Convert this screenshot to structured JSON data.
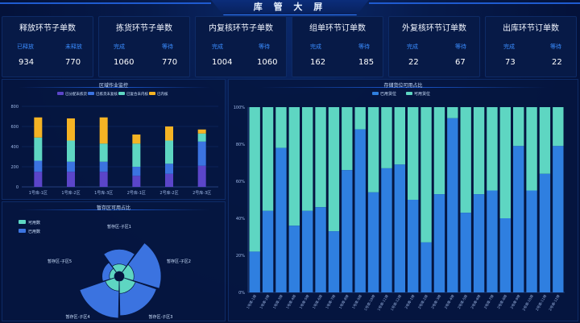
{
  "header": {
    "title": "库 管 大 屏"
  },
  "cards": [
    {
      "title": "释放环节子单数",
      "left_label": "已释放",
      "right_label": "未释放",
      "left_value": "934",
      "right_value": "770"
    },
    {
      "title": "拣货环节子单数",
      "left_label": "完成",
      "right_label": "等待",
      "left_value": "1060",
      "right_value": "770"
    },
    {
      "title": "内复核环节子单数",
      "left_label": "完成",
      "right_label": "等待",
      "left_value": "1004",
      "right_value": "1060"
    },
    {
      "title": "组单环节订单数",
      "left_label": "完成",
      "right_label": "等待",
      "left_value": "162",
      "right_value": "185"
    },
    {
      "title": "外复核环节订单数",
      "left_label": "完成",
      "right_label": "等待",
      "left_value": "22",
      "right_value": "67"
    },
    {
      "title": "出库环节订单数",
      "left_label": "完成",
      "right_label": "等待",
      "left_value": "73",
      "right_value": "22"
    }
  ],
  "colors": {
    "accent": "#3a8cff",
    "purple": "#5b45c9",
    "blue": "#3b73e0",
    "teal": "#5ed6c2",
    "yellow": "#f5b324"
  },
  "chart_data": [
    {
      "type": "bar",
      "title": "区域作业监控",
      "stacked": true,
      "categories": [
        "1号库-1区",
        "1号库-2区",
        "1号库-3区",
        "2号库-1区",
        "2号库-2区",
        "2号库-3区"
      ],
      "series": [
        {
          "name": "已分配未拣货",
          "color": "#5b45c9",
          "values": [
            150,
            150,
            150,
            110,
            130,
            210
          ]
        },
        {
          "name": "已拣货未复核",
          "color": "#3b73e0",
          "values": [
            110,
            100,
            100,
            90,
            100,
            240
          ]
        },
        {
          "name": "已复合未内核",
          "color": "#5ed6c2",
          "values": [
            230,
            210,
            180,
            230,
            230,
            80
          ]
        },
        {
          "name": "已内核",
          "color": "#f5b324",
          "values": [
            200,
            220,
            260,
            90,
            140,
            40
          ]
        }
      ],
      "yticks": [
        "0",
        "200",
        "400",
        "600",
        "800"
      ],
      "ylim": [
        0,
        800
      ],
      "legend": "top"
    },
    {
      "type": "pie",
      "title": "暂存区可用占比",
      "legend_items": [
        {
          "name": "可用数",
          "color": "#5ed6c2"
        },
        {
          "name": "已用数",
          "color": "#3b73e0"
        }
      ],
      "categories": [
        "暂存区-子区1",
        "暂存区-子区2",
        "暂存区-子区3",
        "暂存区-子区4",
        "暂存区-子区5"
      ],
      "series": [
        {
          "name": "可用数",
          "values": [
            15,
            20,
            25,
            20,
            10
          ]
        },
        {
          "name": "已用数",
          "values": [
            30,
            55,
            45,
            55,
            15
          ]
        }
      ]
    },
    {
      "type": "bar",
      "title": "存储货位可用占比",
      "stacked": true,
      "percent": true,
      "legend_items": [
        {
          "name": "已用货位",
          "color": "#2f7fe0"
        },
        {
          "name": "可用货位",
          "color": "#5ed6c2"
        }
      ],
      "categories": [
        "1号库-1排",
        "1号库-2排",
        "1号库-3排",
        "1号库-4排",
        "1号库-5排",
        "1号库-6排",
        "1号库-7排",
        "1号库-8排",
        "1号库-9排",
        "1号库-10排",
        "1号库-11排",
        "1号库-12排",
        "2号库-1排",
        "2号库-2排",
        "2号库-3排",
        "2号库-4排",
        "2号库-5排",
        "2号库-6排",
        "2号库-7排",
        "2号库-8排",
        "2号库-9排",
        "2号库-10排",
        "2号库-11排",
        "2号库-12排"
      ],
      "series": [
        {
          "name": "已用货位",
          "values": [
            22,
            44,
            78,
            36,
            44,
            46,
            33,
            66,
            88,
            54,
            67,
            69,
            50,
            27,
            53,
            94,
            43,
            53,
            55,
            40,
            79,
            55,
            64,
            79
          ]
        }
      ],
      "yticks": [
        "0%",
        "20%",
        "40%",
        "60%",
        "80%",
        "100%"
      ],
      "ylim": [
        0,
        100
      ],
      "legend": "top"
    }
  ]
}
